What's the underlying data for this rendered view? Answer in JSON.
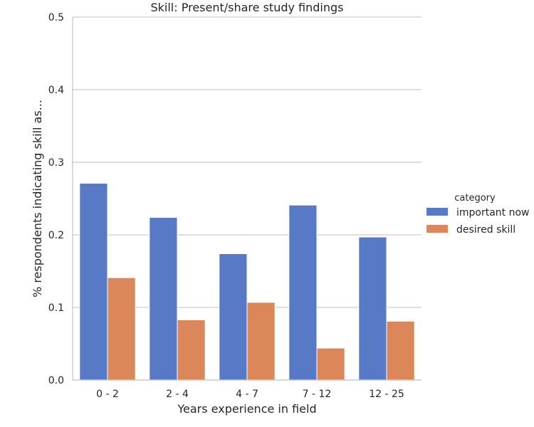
{
  "chart_data": {
    "type": "bar",
    "title": "Skill: Present/share study findings",
    "xlabel": "Years experience in field",
    "ylabel": "% respondents indicating skill as...",
    "categories": [
      "0 - 2",
      "2 - 4",
      "4 - 7",
      "7 - 12",
      "12 - 25"
    ],
    "series": [
      {
        "name": "important now",
        "color": "#5779c6",
        "values": [
          0.271,
          0.224,
          0.174,
          0.241,
          0.197
        ]
      },
      {
        "name": "desired skill",
        "color": "#dc875a",
        "values": [
          0.141,
          0.083,
          0.107,
          0.044,
          0.081
        ]
      }
    ],
    "ylim": [
      0,
      0.5
    ],
    "yticks": [
      "0.0",
      "0.1",
      "0.2",
      "0.3",
      "0.4",
      "0.5"
    ],
    "grid": "horizontal",
    "legend": {
      "title": "category",
      "placement": "right"
    }
  }
}
